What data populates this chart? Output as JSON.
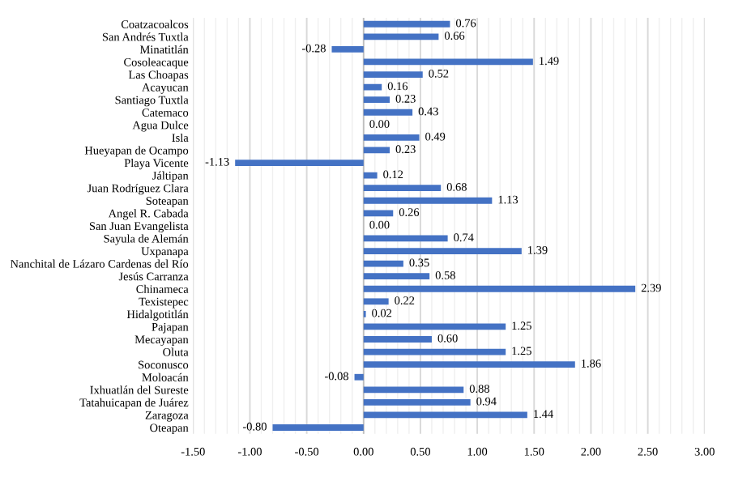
{
  "chart_data": {
    "type": "bar",
    "orientation": "horizontal",
    "categories": [
      "Coatzacoalcos",
      "San Andrés Tuxtla",
      "Minatitlán",
      "Cosoleacaque",
      "Las Choapas",
      "Acayucan",
      "Santiago Tuxtla",
      "Catemaco",
      "Agua Dulce",
      "Isla",
      "Hueyapan de Ocampo",
      "Playa Vicente",
      "Jáltipan",
      "Juan Rodríguez Clara",
      "Soteapan",
      "Angel R. Cabada",
      "San Juan Evangelista",
      "Sayula de Alemán",
      "Uxpanapa",
      "Nanchital de Lázaro Cardenas del Río",
      "Jesús Carranza",
      "Chinameca",
      "Texistepec",
      "Hidalgotitlán",
      "Pajapan",
      "Mecayapan",
      "Oluta",
      "Soconusco",
      "Moloacán",
      "Ixhuatlán del Sureste",
      "Tatahuicapan de Juárez",
      "Zaragoza",
      "Oteapan"
    ],
    "values": [
      0.76,
      0.66,
      -0.28,
      1.49,
      0.52,
      0.16,
      0.23,
      0.43,
      0.0,
      0.49,
      0.23,
      -1.13,
      0.12,
      0.68,
      1.13,
      0.26,
      0.0,
      0.74,
      1.39,
      0.35,
      0.58,
      2.39,
      0.22,
      0.02,
      1.25,
      0.6,
      1.25,
      1.86,
      -0.08,
      0.88,
      0.94,
      1.44,
      -0.8
    ],
    "value_labels": [
      "0.76",
      "0.66",
      "-0.28",
      "1.49",
      "0.52",
      "0.16",
      "0.23",
      "0.43",
      "0.00",
      "0.49",
      "0.23",
      "-1.13",
      "0.12",
      "0.68",
      "1.13",
      "0.26",
      "0.00",
      "0.74",
      "1.39",
      "0.35",
      "0.58",
      "2.39",
      "0.22",
      "0.02",
      "1.25",
      "0.60",
      "1.25",
      "1.86",
      "-0.08",
      "0.88",
      "0.94",
      "1.44",
      "-0.80"
    ],
    "color": "#4472c4",
    "xlim": [
      -1.5,
      3.0
    ],
    "xticks": [
      {
        "value": -1.5,
        "label": "-1.50"
      },
      {
        "value": -1.0,
        "label": "-1.00"
      },
      {
        "value": -0.5,
        "label": "-0.50"
      },
      {
        "value": 0,
        "label": "0.00"
      },
      {
        "value": 0.5,
        "label": "0.50"
      },
      {
        "value": 1.0,
        "label": "1.00"
      },
      {
        "value": 1.5,
        "label": "1.50"
      },
      {
        "value": 2.0,
        "label": "2.00"
      },
      {
        "value": 2.5,
        "label": "2.50"
      },
      {
        "value": 3.0,
        "label": "3.00"
      }
    ],
    "grid": "x"
  }
}
